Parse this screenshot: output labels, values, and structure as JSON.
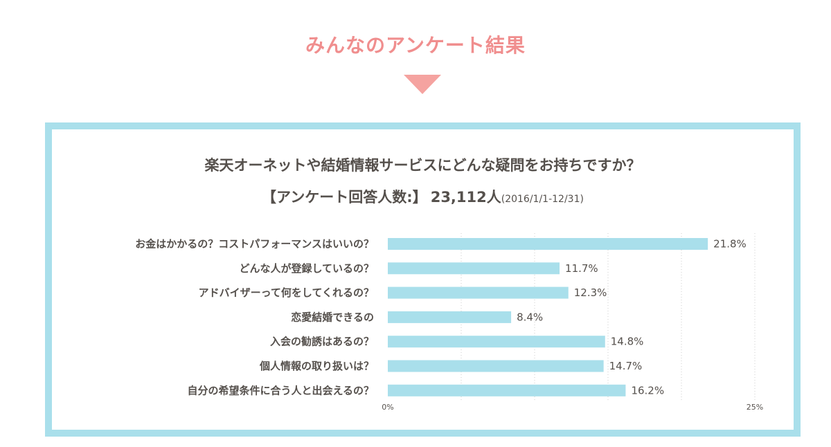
{
  "header": {
    "section_title": "みんなのアンケート結果"
  },
  "survey": {
    "question": "楽天オーネットや結婚情報サービスにどんな疑問をお持ちですか？",
    "respondents_label": "【アンケート回答人数:】",
    "respondents_count": "23,112人",
    "period": "(2016/1/1-12/31)"
  },
  "colors": {
    "accent_title": "#f08e8e",
    "arrow": "#f5a3a0",
    "panel_border": "#a9dfeb",
    "bar": "#a9dfeb",
    "text": "#55504c",
    "grid": "#cccccc"
  },
  "chart_data": {
    "type": "bar",
    "orientation": "horizontal",
    "categories": [
      "お金はかかるの？コストパフォーマンスはいいの？",
      "どんな人が登録しているの？",
      "アドバイザーって何をしてくれるの？",
      "恋愛結婚できるの",
      "入会の勧誘はあるの？",
      "個人情報の取り扱いは？",
      "自分の希望条件に合う人と出会えるの？"
    ],
    "values": [
      21.8,
      11.7,
      12.3,
      8.4,
      14.8,
      14.7,
      16.2
    ],
    "value_labels": [
      "21.8%",
      "11.7%",
      "12.3%",
      "8.4%",
      "14.8%",
      "14.7%",
      "16.2%"
    ],
    "xlim": [
      0,
      25
    ],
    "tick_labels": [
      "0%",
      "25%"
    ],
    "grid": true,
    "grid_lines": 5
  }
}
